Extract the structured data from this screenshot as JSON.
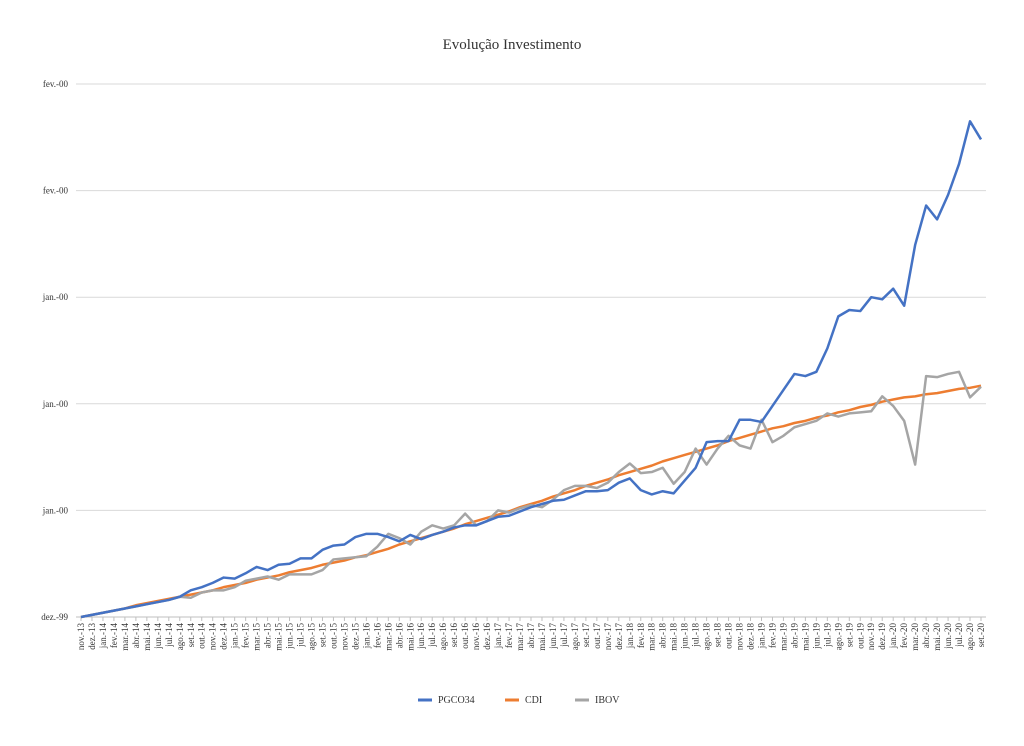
{
  "chart_data": {
    "type": "line",
    "title": "Evolução Investimento",
    "categories": [
      "nov.-13",
      "dez.-13",
      "jan.-14",
      "fev.-14",
      "mar.-14",
      "abr.-14",
      "mai.-14",
      "jun.-14",
      "jul.-14",
      "ago.-14",
      "set.-14",
      "out.-14",
      "nov.-14",
      "dez.-14",
      "jan.-15",
      "fev.-15",
      "mar.-15",
      "abr.-15",
      "mai.-15",
      "jun.-15",
      "jul.-15",
      "ago.-15",
      "set.-15",
      "out.-15",
      "nov.-15",
      "dez.-15",
      "jan.-16",
      "fev.-16",
      "mar.-16",
      "abr.-16",
      "mai.-16",
      "jun.-16",
      "jul.-16",
      "ago.-16",
      "set.-16",
      "out.-16",
      "nov.-16",
      "dez.-16",
      "jan.-17",
      "fev.-17",
      "mar.-17",
      "abr.-17",
      "mai.-17",
      "jun.-17",
      "jul.-17",
      "ago.-17",
      "set.-17",
      "out.-17",
      "nov.-17",
      "dez.-17",
      "jan.-18",
      "fev.-18",
      "mar.-18",
      "abr.-18",
      "mai.-18",
      "jun.-18",
      "jul.-18",
      "ago.-18",
      "set.-18",
      "out.-18",
      "nov.-18",
      "dez.-18",
      "jan.-19",
      "fev.-19",
      "mar.-19",
      "abr.-19",
      "mai.-19",
      "jun.-19",
      "jul.-19",
      "ago.-19",
      "set.-19",
      "out.-19",
      "nov.-19",
      "dez.-19",
      "jan.-20",
      "fev.-20",
      "mar.-20",
      "abr.-20",
      "mai.-20",
      "jun.-20",
      "jul.-20",
      "ago.-20",
      "set.-20"
    ],
    "series": [
      {
        "name": "PGCO34",
        "color": "#4472c4",
        "values": [
          0,
          0.2,
          0.4,
          0.6,
          0.8,
          1.0,
          1.2,
          1.4,
          1.6,
          1.9,
          2.5,
          2.8,
          3.2,
          3.7,
          3.6,
          4.1,
          4.7,
          4.4,
          4.9,
          5.0,
          5.5,
          5.5,
          6.3,
          6.7,
          6.8,
          7.5,
          7.8,
          7.8,
          7.5,
          7.1,
          7.7,
          7.3,
          7.7,
          8.0,
          8.4,
          8.6,
          8.6,
          9.0,
          9.4,
          9.5,
          9.9,
          10.3,
          10.6,
          10.9,
          11.0,
          11.4,
          11.8,
          11.8,
          11.9,
          12.6,
          13.0,
          11.9,
          11.5,
          11.8,
          11.6,
          12.8,
          14.0,
          16.4,
          16.5,
          16.5,
          18.5,
          18.5,
          18.3,
          19.8,
          21.3,
          22.8,
          22.6,
          23.0,
          25.2,
          28.2,
          28.8,
          28.7,
          30.0,
          29.8,
          30.8,
          29.2,
          34.9,
          38.6,
          37.3,
          39.6,
          42.5,
          46.5,
          44.8
        ]
      },
      {
        "name": "CDI",
        "color": "#ed7d31",
        "values": [
          0,
          0.2,
          0.4,
          0.6,
          0.8,
          1.1,
          1.3,
          1.5,
          1.7,
          1.9,
          2.1,
          2.3,
          2.5,
          2.8,
          3.0,
          3.2,
          3.5,
          3.7,
          3.9,
          4.2,
          4.4,
          4.6,
          4.9,
          5.1,
          5.3,
          5.6,
          5.8,
          6.1,
          6.4,
          6.8,
          7.1,
          7.4,
          7.7,
          8.0,
          8.3,
          8.7,
          9.0,
          9.3,
          9.6,
          9.9,
          10.3,
          10.6,
          10.9,
          11.3,
          11.6,
          11.9,
          12.3,
          12.6,
          12.9,
          13.3,
          13.6,
          13.9,
          14.2,
          14.6,
          14.9,
          15.2,
          15.5,
          15.8,
          16.1,
          16.5,
          16.8,
          17.1,
          17.4,
          17.7,
          17.9,
          18.2,
          18.4,
          18.7,
          18.9,
          19.2,
          19.4,
          19.7,
          19.9,
          20.2,
          20.4,
          20.6,
          20.7,
          20.9,
          21.0,
          21.2,
          21.4,
          21.5,
          21.7
        ]
      },
      {
        "name": "IBOV",
        "color": "#a5a5a5",
        "values": [
          0,
          0.2,
          0.4,
          0.6,
          0.8,
          1.0,
          1.2,
          1.4,
          1.6,
          1.9,
          1.8,
          2.3,
          2.5,
          2.5,
          2.8,
          3.4,
          3.6,
          3.8,
          3.5,
          4.0,
          4.0,
          4.0,
          4.4,
          5.4,
          5.5,
          5.6,
          5.7,
          6.6,
          7.8,
          7.4,
          6.8,
          8.0,
          8.6,
          8.3,
          8.6,
          9.7,
          8.6,
          9.0,
          10.0,
          9.8,
          10.2,
          10.5,
          10.3,
          11.0,
          11.9,
          12.3,
          12.3,
          12.1,
          12.6,
          13.6,
          14.4,
          13.5,
          13.6,
          14.0,
          12.5,
          13.6,
          15.8,
          14.3,
          15.8,
          17.0,
          16.1,
          15.8,
          18.5,
          16.4,
          17.0,
          17.8,
          18.1,
          18.4,
          19.1,
          18.8,
          19.1,
          19.2,
          19.3,
          20.7,
          19.8,
          18.4,
          14.3,
          22.6,
          22.5,
          22.8,
          23.0,
          20.6,
          21.6
        ]
      }
    ],
    "ylim": [
      0,
      50
    ],
    "yticks": [
      {
        "value": 0,
        "label": "dez.-99"
      },
      {
        "value": 10,
        "label": "jan.-00"
      },
      {
        "value": 20,
        "label": "jan.-00"
      },
      {
        "value": 30,
        "label": "jan.-00"
      },
      {
        "value": 40,
        "label": "fev.-00"
      },
      {
        "value": 50,
        "label": "fev.-00"
      }
    ],
    "grid": true,
    "legend": "bottom"
  }
}
